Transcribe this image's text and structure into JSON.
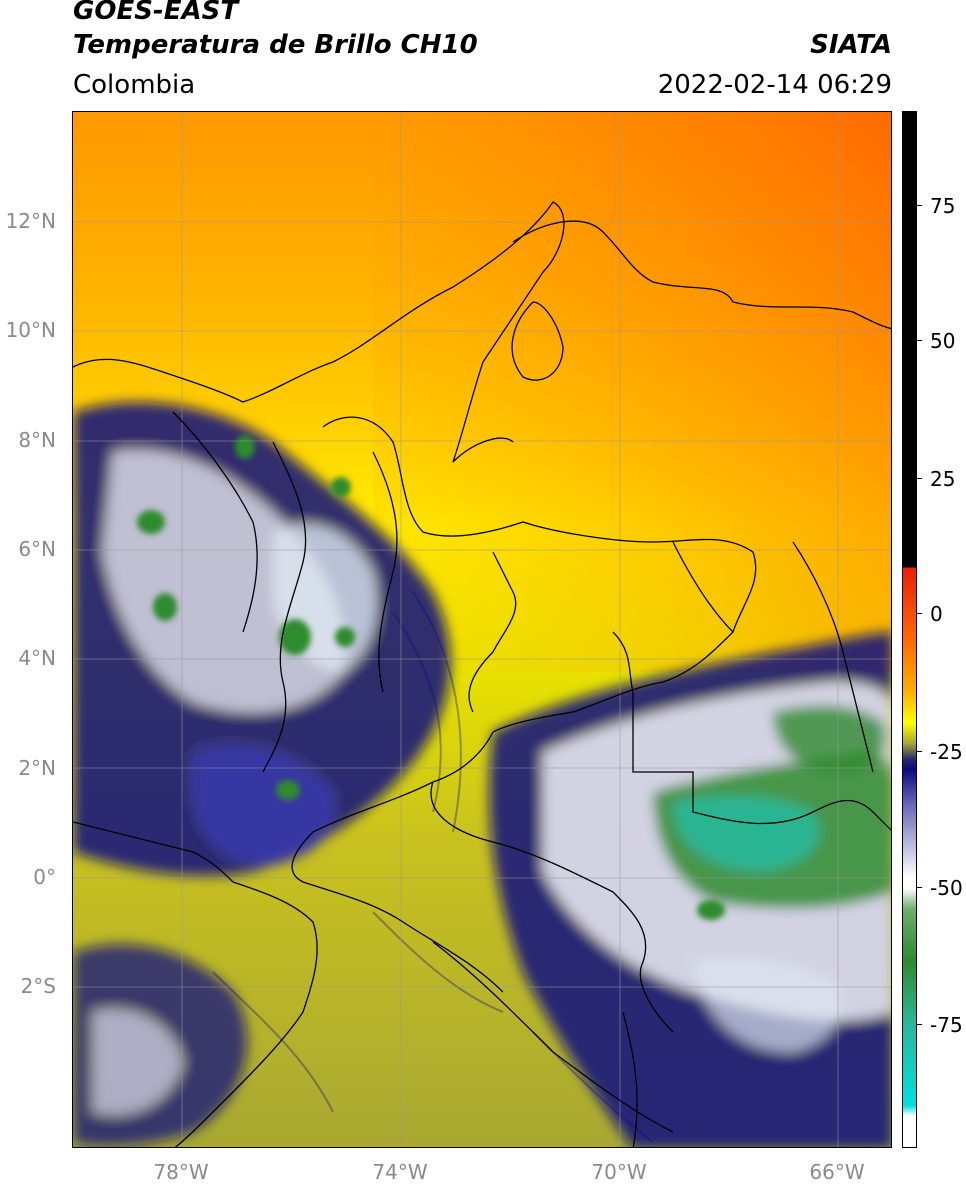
{
  "header": {
    "satellite": "GOES-EAST",
    "product": "Temperatura de Brillo CH10",
    "region": "Colombia",
    "source": "SIATA",
    "datetime": "2022-02-14 06:29"
  },
  "map": {
    "lon_range": [
      -80,
      -65
    ],
    "lat_range": [
      -5,
      14
    ],
    "lat_ticks": [
      "12°N",
      "10°N",
      "8°N",
      "6°N",
      "4°N",
      "2°N",
      "0°",
      "2°S"
    ],
    "lon_ticks": [
      "78°W",
      "74°W",
      "70°W",
      "66°W"
    ],
    "grid_color": "#9a9a9a"
  },
  "colorbar": {
    "ticks": [
      "75",
      "50",
      "25",
      "0",
      "-25",
      "-50",
      "-75"
    ],
    "colors": {
      "black": "#000000",
      "red": "#e8200a",
      "orange": "#ff6a00",
      "yellow": "#ffff00",
      "olive": "#a8a832",
      "navy": "#0a0a80",
      "white": "#ffffff",
      "green": "#2e8b2e",
      "teal": "#28b89a",
      "cyan": "#00e0e0"
    }
  }
}
